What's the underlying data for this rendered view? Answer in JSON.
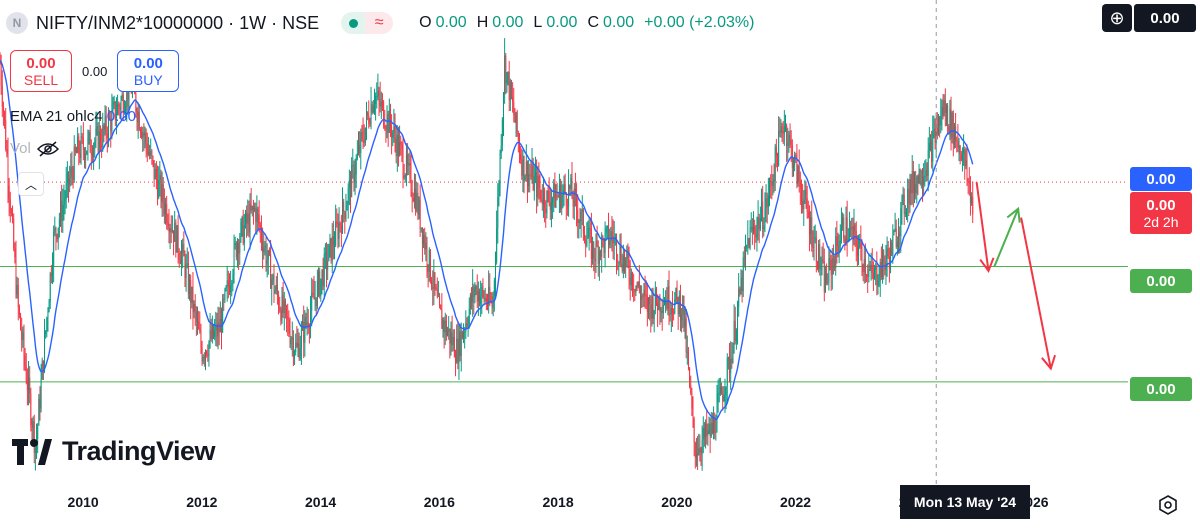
{
  "header": {
    "symbol": "NIFTY/INM2*10000000 · 1W · NSE",
    "logo_letter": "N",
    "ohlc": [
      {
        "label": "O",
        "value": "0.00"
      },
      {
        "label": "H",
        "value": "0.00"
      },
      {
        "label": "L",
        "value": "0.00"
      },
      {
        "label": "C",
        "value": "0.00"
      }
    ],
    "change": "+0.00 (+2.03%)"
  },
  "trade": {
    "sell_value": "0.00",
    "sell_label": "SELL",
    "spread": "0.00",
    "buy_value": "0.00",
    "buy_label": "BUY"
  },
  "indicators": {
    "ema_label": "EMA 21 ohlc4",
    "ema_value": "0.00",
    "vol_label": "Vol"
  },
  "price_scale": {
    "top_value": "0.00",
    "ema_tag": "0.00",
    "last_price_tag": "0.00",
    "countdown": "2d 2h",
    "support_1": "0.00",
    "support_2": "0.00"
  },
  "crosshair_date": "Mon 13 May '24",
  "brand": "TradingView",
  "colors": {
    "up": "#089981",
    "down": "#f23645",
    "ema": "#2962ff",
    "support": "#4caf50",
    "arrow_down": "#f23645",
    "arrow_up": "#4caf50"
  },
  "chart_data": {
    "type": "candlestick",
    "timeframe": "1W",
    "x_ticks": [
      "2010",
      "2012",
      "2014",
      "2016",
      "2018",
      "2020",
      "2022",
      "2024",
      "2026"
    ],
    "x_range": [
      2008.6,
      2027.6
    ],
    "y_range": [
      0,
      100
    ],
    "trend_anchors": [
      [
        2008.6,
        95
      ],
      [
        2008.9,
        40
      ],
      [
        2009.2,
        8
      ],
      [
        2009.5,
        55
      ],
      [
        2009.9,
        75
      ],
      [
        2010.3,
        78
      ],
      [
        2010.8,
        90
      ],
      [
        2011.2,
        70
      ],
      [
        2011.7,
        50
      ],
      [
        2012.0,
        30
      ],
      [
        2012.3,
        35
      ],
      [
        2012.6,
        55
      ],
      [
        2012.9,
        62
      ],
      [
        2013.2,
        45
      ],
      [
        2013.6,
        30
      ],
      [
        2013.9,
        42
      ],
      [
        2014.4,
        62
      ],
      [
        2014.9,
        88
      ],
      [
        2015.2,
        80
      ],
      [
        2015.6,
        65
      ],
      [
        2016.0,
        38
      ],
      [
        2016.3,
        30
      ],
      [
        2016.6,
        44
      ],
      [
        2016.9,
        40
      ],
      [
        2017.1,
        95
      ],
      [
        2017.4,
        72
      ],
      [
        2017.8,
        64
      ],
      [
        2018.2,
        66
      ],
      [
        2018.6,
        52
      ],
      [
        2018.9,
        56
      ],
      [
        2019.2,
        48
      ],
      [
        2019.5,
        40
      ],
      [
        2019.8,
        42
      ],
      [
        2020.1,
        40
      ],
      [
        2020.3,
        8
      ],
      [
        2020.6,
        12
      ],
      [
        2020.9,
        28
      ],
      [
        2021.2,
        55
      ],
      [
        2021.5,
        62
      ],
      [
        2021.8,
        82
      ],
      [
        2022.1,
        66
      ],
      [
        2022.5,
        45
      ],
      [
        2022.8,
        58
      ],
      [
        2023.0,
        55
      ],
      [
        2023.3,
        46
      ],
      [
        2023.6,
        52
      ],
      [
        2023.9,
        66
      ],
      [
        2024.2,
        72
      ],
      [
        2024.5,
        85
      ],
      [
        2024.8,
        75
      ],
      [
        2025.0,
        62
      ]
    ],
    "projection": {
      "down_1": [
        [
          2025.05,
          68
        ],
        [
          2025.25,
          48
        ]
      ],
      "up": [
        [
          2025.35,
          49
        ],
        [
          2025.75,
          62
        ]
      ],
      "down_2": [
        [
          2025.8,
          60
        ],
        [
          2026.3,
          26
        ]
      ]
    },
    "support_levels": [
      49,
      23
    ],
    "last_price_level": 68
  }
}
